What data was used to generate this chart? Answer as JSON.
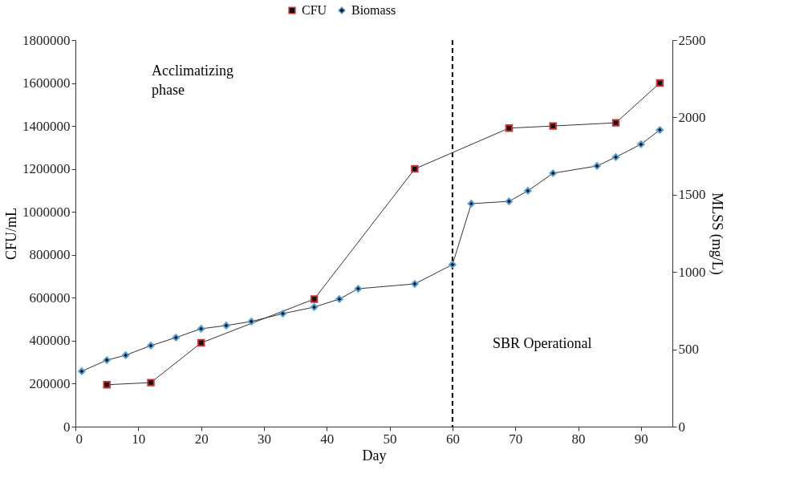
{
  "chart_data": {
    "type": "line",
    "xlabel": "Day",
    "ylabel": "CFU/mL",
    "y2label": "MLSS (mg/L)",
    "xlim": [
      0,
      95
    ],
    "xticks": [
      0,
      10,
      20,
      30,
      40,
      50,
      60,
      70,
      80,
      90
    ],
    "ylim": [
      0,
      1800000
    ],
    "yticks": [
      0,
      200000,
      400000,
      600000,
      800000,
      1000000,
      1200000,
      1400000,
      1600000,
      1800000
    ],
    "y2lim": [
      0,
      2500
    ],
    "y2ticks": [
      0,
      500,
      1000,
      1500,
      2000,
      2500
    ],
    "grid": false,
    "legend": "top",
    "line_style": "solid",
    "series": [
      {
        "name": "CFU",
        "color": "#cc2f2f",
        "marker": "square",
        "x": [
          5,
          12,
          20,
          38,
          54,
          69,
          76,
          86,
          93
        ],
        "values": [
          195000,
          205000,
          390000,
          594000,
          1200000,
          1390000,
          1400000,
          1415000,
          1600000
        ]
      },
      {
        "name": "Biomass",
        "color": "#4f9fd8",
        "marker": "diamond",
        "axis": "y2",
        "x": [
          1,
          5,
          8,
          12,
          16,
          20,
          24,
          28,
          33,
          38,
          42,
          45,
          54,
          60,
          63,
          69,
          72,
          76,
          83,
          86,
          90,
          93
        ],
        "values": [
          358,
          430,
          462,
          524,
          576,
          633,
          654,
          680,
          731,
          773,
          825,
          892,
          923,
          1048,
          1442,
          1457,
          1525,
          1639,
          1686,
          1743,
          1826,
          1919
        ]
      }
    ],
    "ref_lines": [
      {
        "axis": "x",
        "value": 60,
        "color": "#000000",
        "line_style": "dashed"
      }
    ],
    "annotations": [
      "Acclimatizing phase",
      "SBR Operational"
    ]
  }
}
